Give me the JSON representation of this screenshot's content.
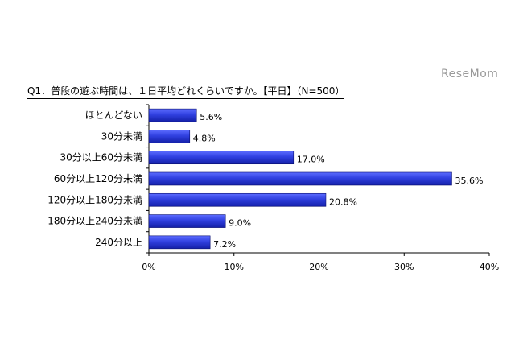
{
  "watermark": "ReseMom",
  "chart_data": {
    "type": "bar",
    "orientation": "horizontal",
    "title": "Q1．普段の遊ぶ時間は、１日平均どれくらいですか。【平日】（N=500）",
    "categories": [
      "ほとんどない",
      "30分未満",
      "30分以上60分未満",
      "60分以上120分未満",
      "120分以上180分未満",
      "180分以上240分未満",
      "240分以上"
    ],
    "values": [
      5.6,
      4.8,
      17.0,
      35.6,
      20.8,
      9.0,
      7.2
    ],
    "value_labels": [
      "5.6%",
      "4.8%",
      "17.0%",
      "35.6%",
      "20.8%",
      "9.0%",
      "7.2%"
    ],
    "xlim": [
      0,
      40
    ],
    "xticks": [
      0,
      10,
      20,
      30,
      40
    ],
    "xtick_labels": [
      "0%",
      "10%",
      "20%",
      "30%",
      "40%"
    ],
    "grid": false,
    "bar_color": "#2a3bd6"
  }
}
